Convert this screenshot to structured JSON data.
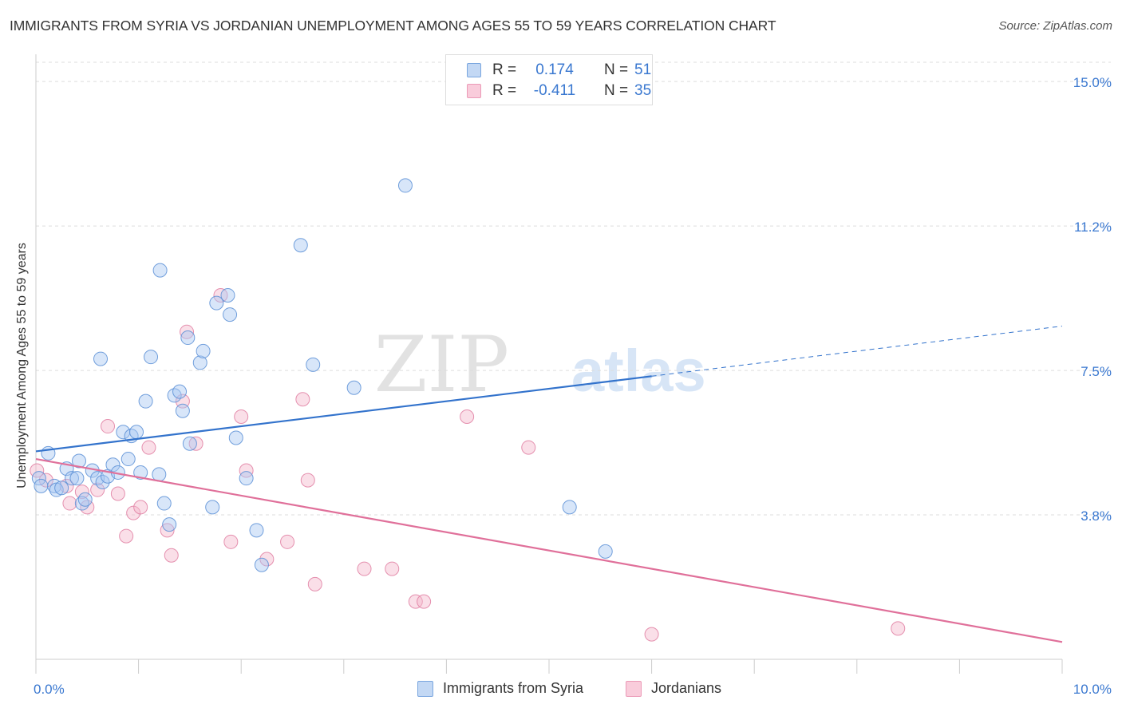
{
  "header": {
    "title": "IMMIGRANTS FROM SYRIA VS JORDANIAN UNEMPLOYMENT AMONG AGES 55 TO 59 YEARS CORRELATION CHART",
    "source": "Source: ZipAtlas.com"
  },
  "watermark": {
    "zip": "ZIP",
    "atlas": "atlas"
  },
  "legend_top": {
    "rows": [
      {
        "r_label": "R =",
        "r_value": "0.174",
        "n_label": "N =",
        "n_value": "51"
      },
      {
        "r_label": "R =",
        "r_value": "-0.411",
        "n_label": "N =",
        "n_value": "35"
      }
    ]
  },
  "legend_bottom": {
    "items": [
      "Immigrants from Syria",
      "Jordanians"
    ]
  },
  "colors": {
    "syria_fill": "#a9c8f2",
    "syria_stroke": "#5b8fd6",
    "syria_line": "#3373cc",
    "jordan_fill": "#f5b8cc",
    "jordan_stroke": "#e07fa2",
    "jordan_line": "#e0709a",
    "grid": "#dddddd",
    "axis_label": "#3a78d0"
  },
  "chart_data": {
    "type": "scatter",
    "title": "IMMIGRANTS FROM SYRIA VS JORDANIAN UNEMPLOYMENT AMONG AGES 55 TO 59 YEARS CORRELATION CHART",
    "xlabel": "",
    "ylabel": "Unemployment Among Ages 55 to 59 years",
    "xlim": [
      0,
      10
    ],
    "ylim": [
      0,
      15.5
    ],
    "x_tick_labels": [
      {
        "value": 0,
        "label": "0.0%"
      },
      {
        "value": 10,
        "label": "10.0%"
      }
    ],
    "y_tick_labels": [
      {
        "value": 15.0,
        "label": "15.0%"
      },
      {
        "value": 11.25,
        "label": "11.2%"
      },
      {
        "value": 7.5,
        "label": "7.5%"
      },
      {
        "value": 3.75,
        "label": "3.8%"
      }
    ],
    "grid": true,
    "legend_position": "top-center",
    "series": [
      {
        "name": "Immigrants from Syria",
        "points": [
          [
            0.03,
            4.7
          ],
          [
            0.05,
            4.5
          ],
          [
            0.12,
            5.35
          ],
          [
            0.18,
            4.5
          ],
          [
            0.2,
            4.4
          ],
          [
            0.25,
            4.45
          ],
          [
            0.3,
            4.95
          ],
          [
            0.35,
            4.7
          ],
          [
            0.4,
            4.7
          ],
          [
            0.42,
            5.15
          ],
          [
            0.45,
            4.05
          ],
          [
            0.48,
            4.15
          ],
          [
            0.55,
            4.9
          ],
          [
            0.6,
            4.7
          ],
          [
            0.63,
            7.8
          ],
          [
            0.65,
            4.6
          ],
          [
            0.7,
            4.75
          ],
          [
            0.75,
            5.05
          ],
          [
            0.8,
            4.85
          ],
          [
            0.85,
            5.9
          ],
          [
            0.9,
            5.2
          ],
          [
            0.93,
            5.8
          ],
          [
            0.98,
            5.9
          ],
          [
            1.02,
            4.85
          ],
          [
            1.07,
            6.7
          ],
          [
            1.12,
            7.85
          ],
          [
            1.2,
            4.8
          ],
          [
            1.21,
            10.1
          ],
          [
            1.25,
            4.05
          ],
          [
            1.3,
            3.5
          ],
          [
            1.35,
            6.85
          ],
          [
            1.4,
            6.95
          ],
          [
            1.43,
            6.45
          ],
          [
            1.48,
            8.35
          ],
          [
            1.5,
            5.6
          ],
          [
            1.6,
            7.7
          ],
          [
            1.63,
            8.0
          ],
          [
            1.72,
            3.95
          ],
          [
            1.76,
            9.25
          ],
          [
            1.87,
            9.45
          ],
          [
            1.89,
            8.95
          ],
          [
            1.95,
            5.75
          ],
          [
            2.05,
            4.7
          ],
          [
            2.15,
            3.35
          ],
          [
            2.2,
            2.45
          ],
          [
            2.58,
            10.75
          ],
          [
            2.7,
            7.65
          ],
          [
            3.1,
            7.05
          ],
          [
            3.6,
            12.3
          ],
          [
            5.2,
            3.95
          ],
          [
            5.55,
            2.8
          ]
        ],
        "trend": {
          "x0": 0.0,
          "y0": 5.4,
          "x1": 6.0,
          "y1": 7.35,
          "dash_x1": 10.0,
          "dash_y1": 8.65
        }
      },
      {
        "name": "Jordanians",
        "points": [
          [
            0.01,
            4.9
          ],
          [
            0.1,
            4.65
          ],
          [
            0.3,
            4.5
          ],
          [
            0.33,
            4.05
          ],
          [
            0.45,
            4.35
          ],
          [
            0.5,
            3.95
          ],
          [
            0.6,
            4.4
          ],
          [
            0.7,
            6.05
          ],
          [
            0.8,
            4.3
          ],
          [
            0.88,
            3.2
          ],
          [
            0.95,
            3.8
          ],
          [
            1.02,
            3.95
          ],
          [
            1.1,
            5.5
          ],
          [
            1.28,
            3.35
          ],
          [
            1.32,
            2.7
          ],
          [
            1.43,
            6.7
          ],
          [
            1.47,
            8.5
          ],
          [
            1.56,
            5.6
          ],
          [
            1.8,
            9.45
          ],
          [
            1.9,
            3.05
          ],
          [
            2.0,
            6.3
          ],
          [
            2.05,
            4.9
          ],
          [
            2.25,
            2.6
          ],
          [
            2.45,
            3.05
          ],
          [
            2.6,
            6.75
          ],
          [
            2.65,
            4.65
          ],
          [
            2.72,
            1.95
          ],
          [
            3.2,
            2.35
          ],
          [
            3.47,
            2.35
          ],
          [
            3.7,
            1.5
          ],
          [
            3.78,
            1.5
          ],
          [
            4.2,
            6.3
          ],
          [
            4.8,
            5.5
          ],
          [
            6.0,
            0.65
          ],
          [
            8.4,
            0.8
          ]
        ],
        "trend": {
          "x0": 0.0,
          "y0": 5.2,
          "x1": 10.0,
          "y1": 0.45
        }
      }
    ]
  }
}
